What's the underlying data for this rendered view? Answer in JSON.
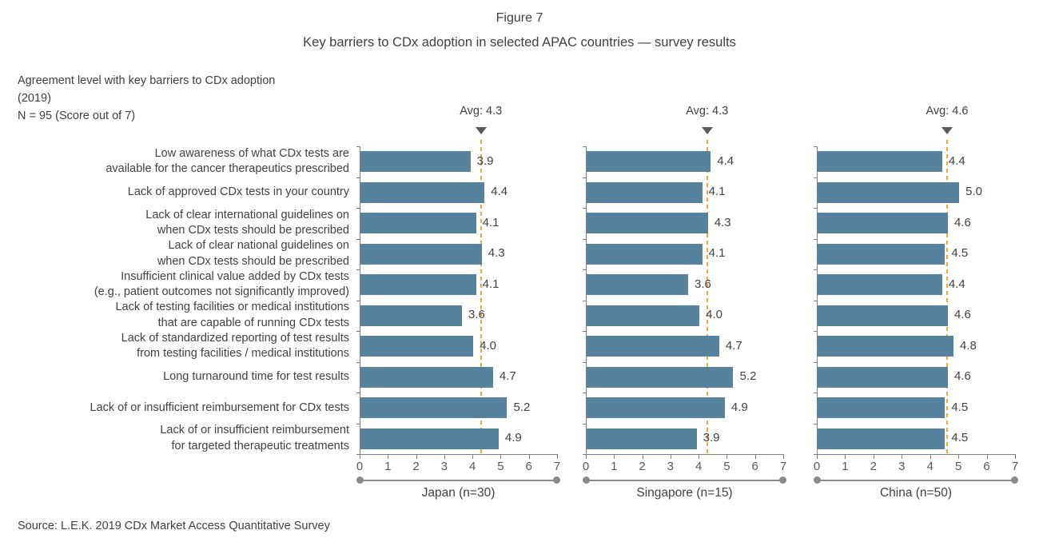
{
  "header": {
    "figure_label": "Figure 7",
    "title": "Key barriers to CDx adoption in selected APAC countries — survey results"
  },
  "subtitle": {
    "line1": "Agreement level with key barriers to CDx adoption",
    "line2": "(2019)",
    "sample_note": "N = 95 (Score out of 7)"
  },
  "chart_data": {
    "type": "bar",
    "orientation": "horizontal",
    "xlabel": "",
    "ylabel": "",
    "score_range": [
      0,
      7
    ],
    "axis_ticks": [
      0,
      1,
      2,
      3,
      4,
      5,
      6,
      7
    ],
    "grid": false,
    "categories": [
      "Low awareness of what CDx tests are available for the cancer therapeutics prescribed",
      "Lack of approved CDx tests in your country",
      "Lack of clear international guidelines on when CDx tests should be prescribed",
      "Lack of clear national guidelines on when CDx tests should be prescribed",
      "Insufficient clinical value added by CDx tests (e.g., patient outcomes not significantly improved)",
      "Lack of testing facilities or medical institutions that are capable of running CDx tests",
      "Lack of standardized reporting of test results from testing facilities / medical institutions",
      "Long turnaround time for test results",
      "Lack of or insufficient reimbursement for CDx tests",
      "Lack of or insufficient reimbursement for targeted therapeutic treatments"
    ],
    "category_lines": [
      [
        "Low awareness of what CDx tests are",
        "available for the cancer therapeutics prescribed"
      ],
      [
        "Lack of approved CDx tests in your country"
      ],
      [
        "Lack of clear international guidelines on",
        "when CDx tests should be prescribed"
      ],
      [
        "Lack of clear national guidelines on",
        "when CDx tests should be prescribed"
      ],
      [
        "Insufficient clinical value added by CDx tests",
        "(e.g., patient outcomes not significantly improved)"
      ],
      [
        "Lack of testing facilities or medical institutions",
        "that are capable of running CDx tests"
      ],
      [
        "Lack of standardized reporting of test results",
        "from testing facilities / medical institutions"
      ],
      [
        "Long turnaround time for test results"
      ],
      [
        "Lack of or insufficient reimbursement for CDx tests"
      ],
      [
        "Lack of or insufficient reimbursement",
        "for targeted therapeutic treatments"
      ]
    ],
    "series": [
      {
        "name": "Japan (n=30)",
        "avg": 4.3,
        "avg_label": "Avg: 4.3",
        "values": [
          3.9,
          4.4,
          4.1,
          4.3,
          4.1,
          3.6,
          4.0,
          4.7,
          5.2,
          4.9
        ]
      },
      {
        "name": "Singapore (n=15)",
        "avg": 4.3,
        "avg_label": "Avg: 4.3",
        "values": [
          4.4,
          4.1,
          4.3,
          4.1,
          3.6,
          4.0,
          4.7,
          5.2,
          4.9,
          3.9
        ]
      },
      {
        "name": "China (n=50)",
        "avg": 4.6,
        "avg_label": "Avg: 4.6",
        "values": [
          4.4,
          5.0,
          4.6,
          4.5,
          4.4,
          4.6,
          4.8,
          4.6,
          4.5,
          4.5
        ]
      }
    ],
    "colors": {
      "bar": "#56829E",
      "avg_line": "#EFA73E",
      "avg_marker": "#5A5A5A",
      "axis": "#7F7F7F",
      "tick_text": "#595959",
      "bracket": "#8A8A8A",
      "text": "#414141"
    }
  },
  "footer": {
    "source": "Source: L.E.K. 2019 CDx Market Access Quantitative Survey"
  }
}
